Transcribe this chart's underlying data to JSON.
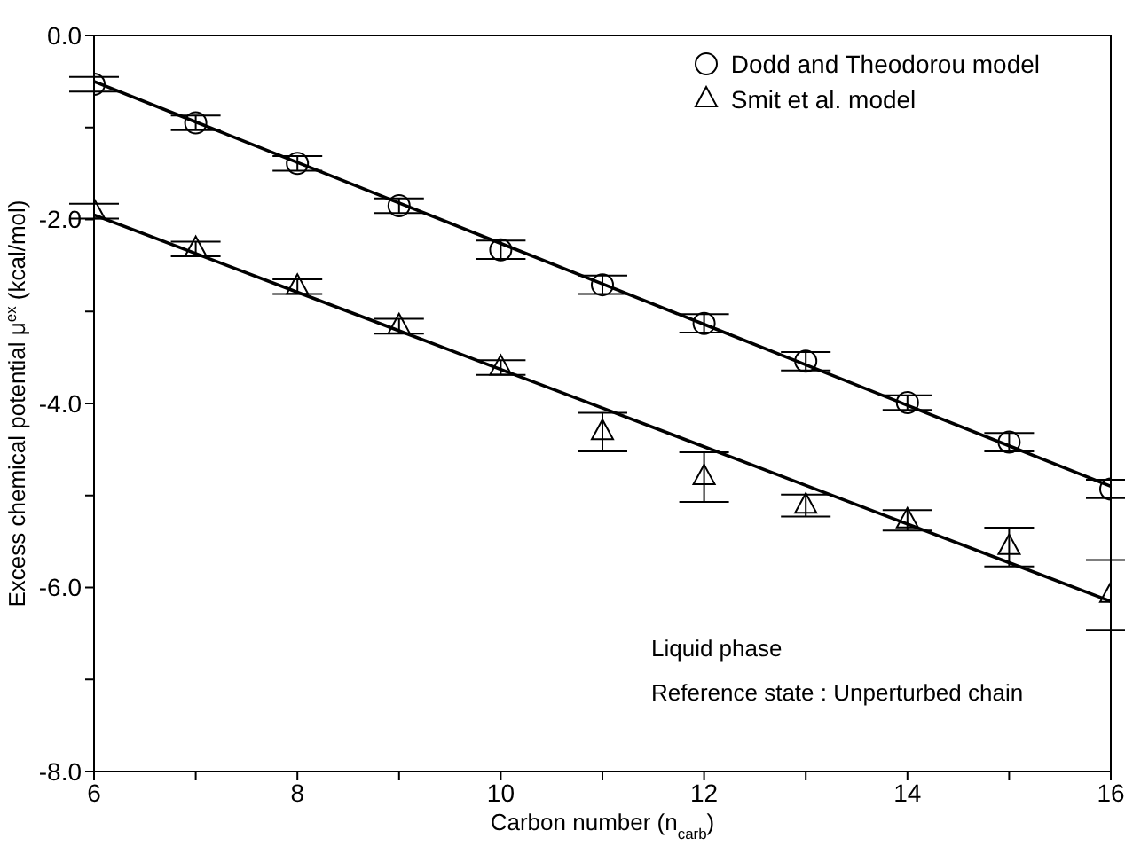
{
  "chart_data": {
    "type": "scatter",
    "xlabel": "Carbon number (n$_{carb}$)",
    "ylabel": "Excess chemical potential μ$^{ex}$ (kcal/mol)",
    "xlim": [
      6,
      16
    ],
    "xticks": [
      6,
      {
        "value": 7,
        "label": null
      },
      8,
      {
        "value": 9,
        "label": null
      },
      10,
      {
        "value": 11,
        "label": null
      },
      12,
      {
        "value": 13,
        "label": null
      },
      14,
      {
        "value": 15,
        "label": null
      },
      16
    ],
    "ylim": [
      -8,
      0
    ],
    "yticks": [
      {
        "value": -8,
        "label": "-8.0"
      },
      {
        "value": -7,
        "label": null
      },
      {
        "value": -6,
        "label": "-6.0"
      },
      {
        "value": -5,
        "label": null
      },
      {
        "value": -4,
        "label": "-4.0"
      },
      {
        "value": -3,
        "label": null
      },
      {
        "value": -2,
        "label": "-2.0"
      },
      {
        "value": -1,
        "label": null
      },
      {
        "value": 0,
        "label": "0.0"
      }
    ],
    "x": [
      6,
      7,
      8,
      9,
      10,
      11,
      12,
      13,
      14,
      15,
      16
    ],
    "series": [
      {
        "name": "Dodd and Theodorou model",
        "color": "#000000",
        "marker": "circle",
        "values": [
          -0.53,
          -0.95,
          -1.39,
          -1.85,
          -2.33,
          -2.71,
          -3.13,
          -3.54,
          -3.99,
          -4.42,
          -4.93
        ],
        "errors": [
          0.08,
          0.08,
          0.08,
          0.08,
          0.1,
          0.1,
          0.1,
          0.1,
          0.08,
          0.1,
          0.1
        ]
      },
      {
        "name": "Smit et al. model",
        "color": "#000000",
        "marker": "triangle",
        "values": [
          -1.91,
          -2.32,
          -2.73,
          -3.16,
          -3.61,
          -4.31,
          -4.8,
          -5.11,
          -5.27,
          -5.56,
          -6.08
        ],
        "errors": [
          0.08,
          0.08,
          0.08,
          0.08,
          0.08,
          0.21,
          0.27,
          0.12,
          0.11,
          0.21,
          0.38
        ]
      },
      {
        "type": "line",
        "color": "#000000",
        "values": [
          -0.5,
          -0.94,
          -1.38,
          -1.82,
          -2.26,
          -2.7,
          -3.14,
          -3.58,
          -4.02,
          -4.46,
          -4.9
        ]
      },
      {
        "type": "line",
        "color": "#000000",
        "values": [
          -1.95,
          -2.37,
          -2.79,
          -3.21,
          -3.63,
          -4.05,
          -4.47,
          -4.89,
          -5.31,
          -5.73,
          -6.15
        ]
      }
    ],
    "legend": "top right",
    "annotations": [
      "Liquid phase",
      "Reference state : Unperturbed chain"
    ]
  }
}
